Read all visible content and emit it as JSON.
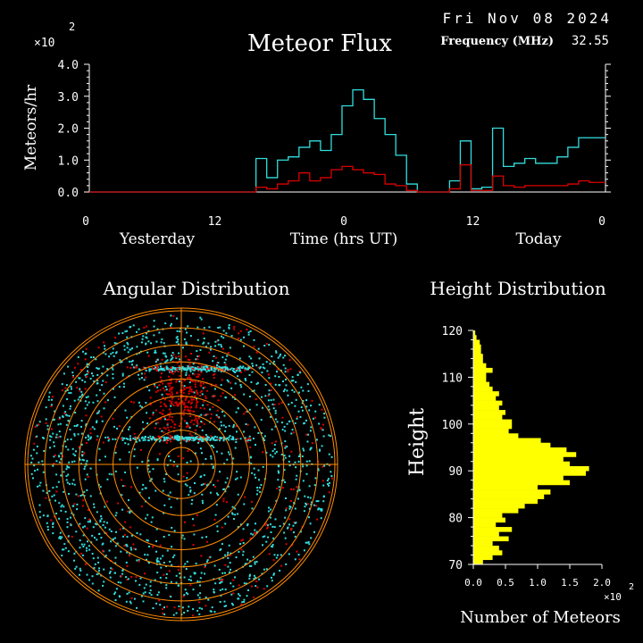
{
  "header": {
    "date": "Fri Nov 08 2024",
    "frequency_label": "Frequency (MHz)",
    "frequency_value": "32.55",
    "y_multiplier_base": "×10",
    "y_multiplier_exp": "2"
  },
  "colors": {
    "background": "#000000",
    "total_series": "#33dddd",
    "underdense_series": "#dd0000",
    "radar_rings": "#ff8c00",
    "radar_points_a": "#33dddd",
    "radar_points_b": "#dd0000",
    "height_bars": "#ffff00",
    "axes": "#ffffff"
  },
  "chart_data": [
    {
      "type": "line",
      "title": "Meteor Flux",
      "xlabel": "Time (hrs UT)",
      "ylabel": "Meteors/hr",
      "x_tick_labels": [
        "0",
        "12",
        "0",
        "12",
        "0"
      ],
      "x_day_labels": [
        "Yesterday",
        "Today"
      ],
      "y_tick_labels": [
        "0.0",
        "1.0",
        "2.0",
        "3.0",
        "4.0"
      ],
      "ylim": [
        0,
        4.0
      ],
      "y_multiplier": 100,
      "xlim": [
        0,
        48
      ],
      "step": "post",
      "series": [
        {
          "name": "",
          "color_key": "total_series",
          "x": [
            0,
            15.5,
            16.5,
            17.5,
            18.5,
            19.5,
            20.5,
            21.5,
            22.5,
            23.5,
            24.5,
            25.5,
            26.5,
            27.5,
            28.5,
            29.5,
            30.5,
            31.5,
            32.5,
            33.5,
            34.5,
            35.5,
            36.5,
            37.5,
            38.5,
            39.5,
            40.5,
            41.5,
            42.5,
            43.5,
            44.5,
            45.5,
            46.5,
            47.5,
            48
          ],
          "y": [
            0,
            1.05,
            0.45,
            1.0,
            1.1,
            1.4,
            1.6,
            1.3,
            1.8,
            2.7,
            3.2,
            2.9,
            2.3,
            1.8,
            1.15,
            0.25,
            0,
            0,
            0,
            0.35,
            1.6,
            0.1,
            0.15,
            2.0,
            0.8,
            0.9,
            1.05,
            0.9,
            0.9,
            1.1,
            1.4,
            1.7,
            1.7,
            1.7,
            1.7
          ]
        },
        {
          "name": "",
          "color_key": "underdense_series",
          "x": [
            0,
            15.5,
            16.5,
            17.5,
            18.5,
            19.5,
            20.5,
            21.5,
            22.5,
            23.5,
            24.5,
            25.5,
            26.5,
            27.5,
            28.5,
            29.5,
            30.5,
            31.5,
            32.5,
            33.5,
            34.5,
            35.5,
            36.5,
            37.5,
            38.5,
            39.5,
            40.5,
            41.5,
            42.5,
            43.5,
            44.5,
            45.5,
            46.5,
            47.5,
            48
          ],
          "y": [
            0,
            0.15,
            0.1,
            0.25,
            0.35,
            0.6,
            0.35,
            0.45,
            0.7,
            0.8,
            0.7,
            0.6,
            0.55,
            0.25,
            0.2,
            0.05,
            0,
            0,
            0,
            0.1,
            0.85,
            0.05,
            0.05,
            0.5,
            0.2,
            0.15,
            0.2,
            0.2,
            0.2,
            0.2,
            0.25,
            0.35,
            0.3,
            0.3,
            0.3
          ]
        }
      ]
    },
    {
      "type": "scatter",
      "title": "Angular Distribution",
      "projection": "polar-sky",
      "ring_count": 9
    },
    {
      "type": "bar",
      "orientation": "horizontal",
      "title": "Height Distribution",
      "ylabel": "Height",
      "xlabel": "Number of Meteors",
      "y_tick_labels": [
        "70",
        "80",
        "90",
        "100",
        "110",
        "120"
      ],
      "ylim": [
        70,
        120
      ],
      "x_tick_labels": [
        "0.0",
        "0.5",
        "1.0",
        "1.5",
        "2.0"
      ],
      "xlim": [
        0,
        2.0
      ],
      "x_multiplier_base": "×10",
      "x_multiplier_exp": "2",
      "bin_size": 1,
      "heights": [
        70,
        71,
        72,
        73,
        74,
        75,
        76,
        77,
        78,
        79,
        80,
        81,
        82,
        83,
        84,
        85,
        86,
        87,
        88,
        89,
        90,
        91,
        92,
        93,
        94,
        95,
        96,
        97,
        98,
        99,
        100,
        101,
        102,
        103,
        104,
        105,
        106,
        107,
        108,
        109,
        110,
        111,
        112,
        113,
        114,
        115,
        116,
        117,
        118,
        119
      ],
      "values": [
        0.15,
        0.3,
        0.45,
        0.4,
        0.3,
        0.55,
        0.4,
        0.6,
        0.35,
        0.5,
        0.45,
        0.7,
        0.8,
        1.0,
        1.1,
        1.2,
        1.0,
        1.5,
        1.4,
        1.75,
        1.8,
        1.5,
        1.4,
        1.6,
        1.45,
        1.2,
        1.05,
        0.7,
        0.55,
        0.6,
        0.6,
        0.45,
        0.5,
        0.4,
        0.45,
        0.35,
        0.4,
        0.3,
        0.25,
        0.2,
        0.2,
        0.3,
        0.2,
        0.15,
        0.15,
        0.12,
        0.12,
        0.1,
        0.05,
        0.03
      ]
    }
  ]
}
